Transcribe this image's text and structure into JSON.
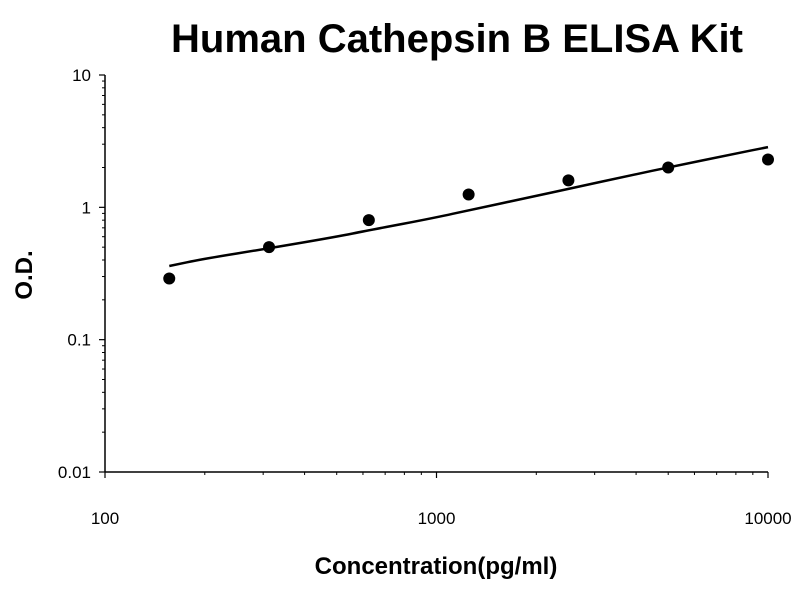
{
  "chart_data": {
    "type": "scatter",
    "title": "Human Cathepsin B ELISA Kit",
    "xlabel": "Concentration(pg/ml)",
    "ylabel": "O.D.",
    "x_scale": "log",
    "y_scale": "log",
    "xlim": [
      100,
      10000
    ],
    "ylim": [
      0.01,
      10
    ],
    "x_ticks": [
      "100",
      "1000",
      "10000"
    ],
    "y_ticks": [
      "0.01",
      "0.1",
      "1",
      "10"
    ],
    "grid": false,
    "legend": "none",
    "series": [
      {
        "type": "scatter",
        "x": [
          156.25,
          312.5,
          625,
          1250,
          2500,
          5000,
          10000
        ],
        "y": [
          0.29,
          0.5,
          0.8,
          1.25,
          1.6,
          2.0,
          2.3
        ],
        "color": "#000000"
      },
      {
        "type": "line",
        "x": [
          156.25,
          200,
          312.5,
          500,
          625,
          1000,
          1250,
          2000,
          2500,
          4000,
          5000,
          8000,
          10000
        ],
        "y": [
          0.36,
          0.41,
          0.49,
          0.6,
          0.67,
          0.84,
          0.95,
          1.22,
          1.38,
          1.78,
          2.0,
          2.55,
          2.85
        ],
        "color": "#000000"
      }
    ]
  }
}
